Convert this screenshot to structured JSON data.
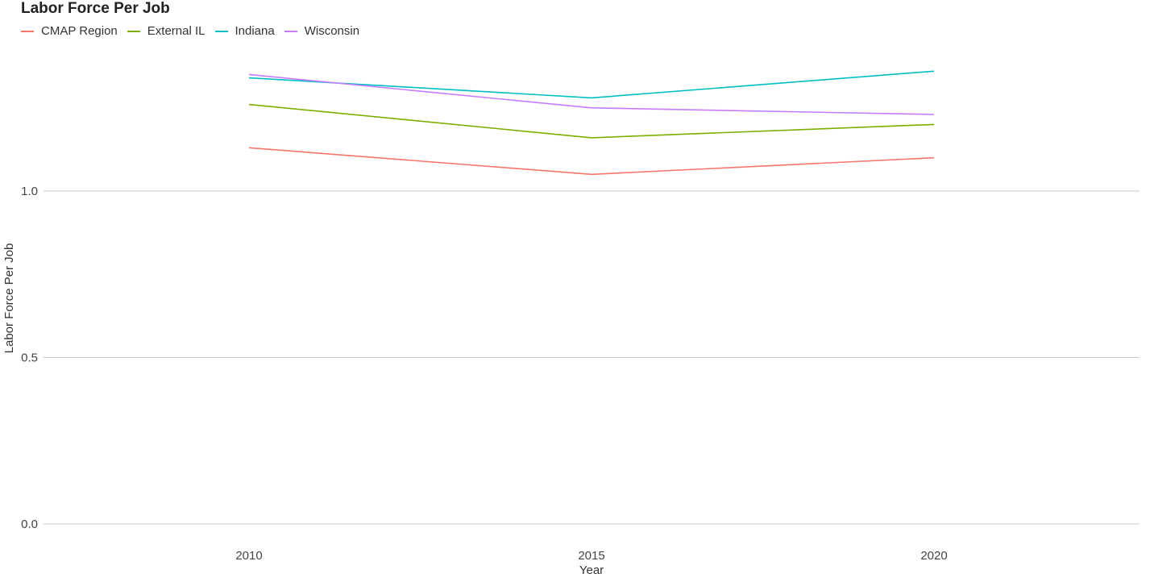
{
  "chart_data": {
    "type": "line",
    "title": "Labor Force Per Job",
    "xlabel": "Year",
    "ylabel": "Labor Force Per Job",
    "x": [
      2010,
      2015,
      2020
    ],
    "x_tick_labels": [
      "2010",
      "2015",
      "2020"
    ],
    "xlim": [
      2007,
      2023
    ],
    "ylim": [
      0,
      1.4
    ],
    "y_ticks": [
      0.0,
      0.5,
      1.0
    ],
    "y_tick_labels": [
      "0.0",
      "0.5",
      "1.0"
    ],
    "grid": "horizontal major only",
    "legend_position": "top-left",
    "series": [
      {
        "name": "CMAP Region",
        "color": "#F8766D",
        "values": [
          1.13,
          1.05,
          1.1
        ]
      },
      {
        "name": "External IL",
        "color": "#7CAE00",
        "values": [
          1.26,
          1.16,
          1.2
        ]
      },
      {
        "name": "Indiana",
        "color": "#00BFC4",
        "values": [
          1.34,
          1.28,
          1.36
        ]
      },
      {
        "name": "Wisconsin",
        "color": "#C77CFF",
        "values": [
          1.35,
          1.25,
          1.23
        ]
      }
    ]
  }
}
